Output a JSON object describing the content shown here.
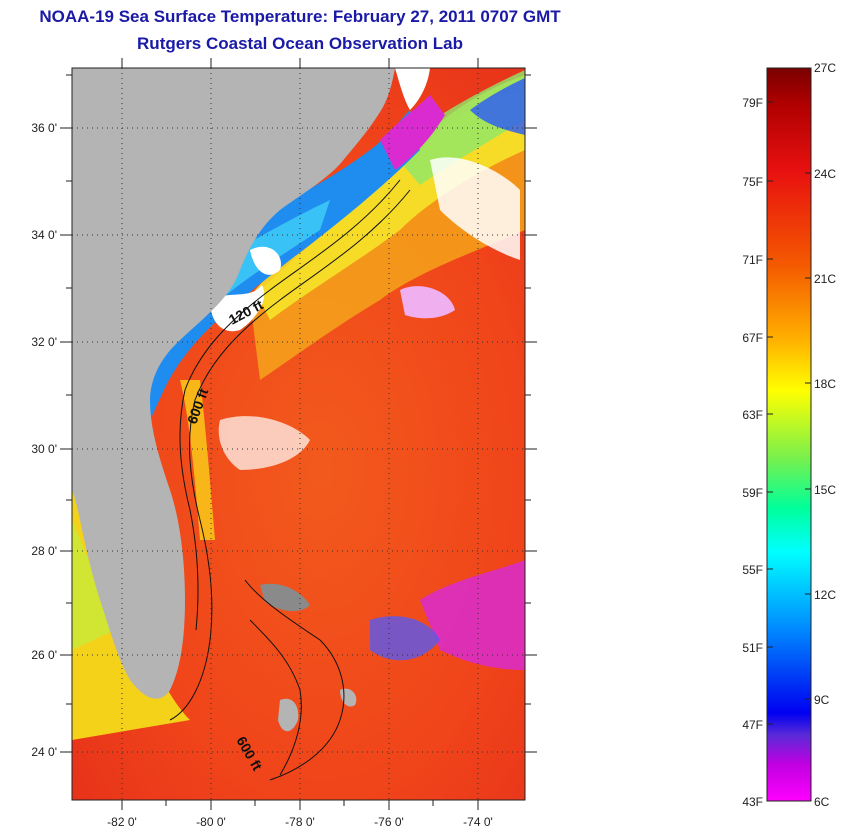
{
  "title": "NOAA-19 Sea Surface Temperature:  February 27, 2011 0707 GMT",
  "subtitle": "Rutgers Coastal Ocean Observation Lab",
  "map": {
    "lat_labels": [
      "36 0'",
      "34 0'",
      "32 0'",
      "30 0'",
      "28 0'",
      "26 0'",
      "24 0'"
    ],
    "lon_labels": [
      "-82 0'",
      "-80 0'",
      "-78 0'",
      "-76 0'",
      "-74 0'"
    ],
    "isobaths": [
      "120 ft",
      "600 ft",
      "600 ft"
    ]
  },
  "colorbar": {
    "celsius_labels": [
      "27C",
      "24C",
      "21C",
      "18C",
      "15C",
      "12C",
      "9C",
      "6C"
    ],
    "fahrenheit_labels": [
      "79F",
      "75F",
      "71F",
      "67F",
      "63F",
      "59F",
      "55F",
      "51F",
      "47F",
      "43F"
    ]
  },
  "colors": {
    "title": "#1a1aa6",
    "land": "#b4b4b4",
    "warm_ocean": "#ef4a1c",
    "cloud": "#ffffff"
  }
}
